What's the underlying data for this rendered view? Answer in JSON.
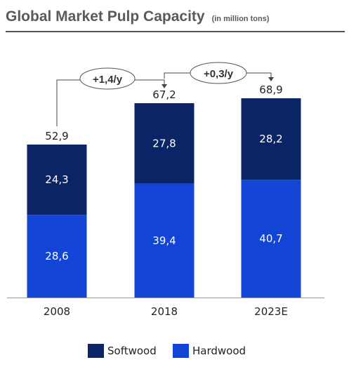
{
  "header": {
    "title": "Global Market Pulp Capacity",
    "subtitle": "(in million tons)"
  },
  "colors": {
    "softwood": "#0a2466",
    "hardwood": "#1245d6",
    "bar_text": "#ffffff",
    "connector": "#444444"
  },
  "chart_data": {
    "type": "bar",
    "stacked": true,
    "title": "Global Market Pulp Capacity",
    "subtitle": "(in million tons)",
    "categories": [
      "2008",
      "2018",
      "2023E"
    ],
    "series": [
      {
        "name": "Hardwood",
        "values": [
          28.6,
          39.4,
          40.7
        ]
      },
      {
        "name": "Softwood",
        "values": [
          24.3,
          27.8,
          28.2
        ]
      }
    ],
    "value_labels": {
      "Hardwood": [
        "28,6",
        "39,4",
        "40,7"
      ],
      "Softwood": [
        "24,3",
        "27,8",
        "28,2"
      ]
    },
    "totals": [
      52.9,
      67.2,
      68.9
    ],
    "total_labels": [
      "52,9",
      "67,2",
      "68,9"
    ],
    "annotations": [
      {
        "from": "2008",
        "to": "2018",
        "text": "+1,4/y"
      },
      {
        "from": "2018",
        "to": "2023E",
        "text": "+0,3/y"
      }
    ],
    "ylim": [
      0,
      80
    ],
    "grid": false,
    "legend_position": "bottom-center",
    "xlabel": "",
    "ylabel": ""
  },
  "legend": {
    "softwood_label": "Softwood",
    "hardwood_label": "Hardwood"
  }
}
